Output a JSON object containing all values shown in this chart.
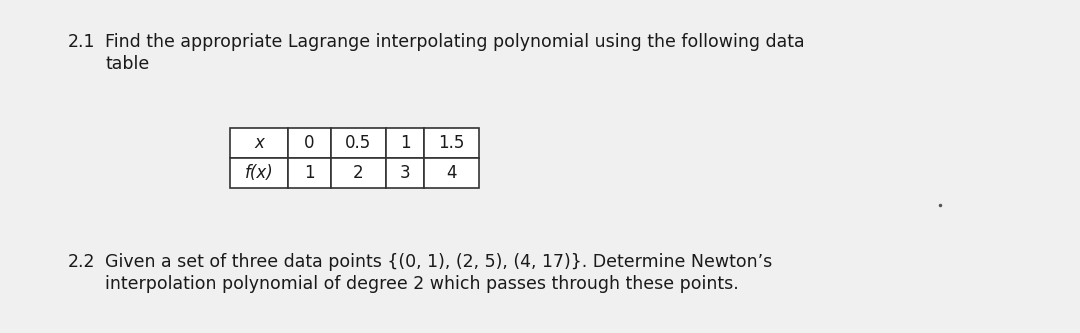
{
  "background_color": "#f0f0f0",
  "text_color": "#1a1a1a",
  "q1_number": "2.1",
  "q1_line1": "Find the appropriate Lagrange interpolating polynomial using the following data",
  "q1_line2": "table",
  "q2_number": "2.2",
  "q2_line1": "Given a set of three data points {(0, 1), (2, 5), (4, 17)}. Determine Newton’s",
  "q2_line2": "interpolation polynomial of degree 2 which passes through these points.",
  "table_x_label": "x",
  "table_fx_label": "f(x)",
  "table_x_values": [
    "0",
    "0.5",
    "1",
    "1.5"
  ],
  "table_fx_values": [
    "1",
    "2",
    "3",
    "4"
  ],
  "font_size_text": 12.5,
  "font_size_table": 12
}
